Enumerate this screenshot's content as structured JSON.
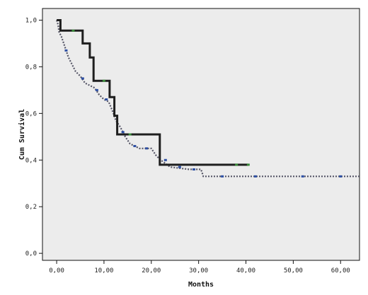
{
  "chart_data": {
    "type": "line",
    "title": "",
    "xlabel": "Months",
    "ylabel": "Cum Survival",
    "xlim": [
      -3,
      64
    ],
    "ylim": [
      -0.03,
      1.05
    ],
    "xticks": [
      0,
      10,
      20,
      30,
      40,
      50,
      60
    ],
    "xtick_labels": [
      "0,00",
      "10,00",
      "20,00",
      "30,00",
      "40,00",
      "50,00",
      "60,00"
    ],
    "yticks": [
      0,
      0.2,
      0.4,
      0.6,
      0.8,
      1.0
    ],
    "ytick_labels": [
      "0,0",
      "0,2",
      "0,4",
      "0,6",
      "0,8",
      "1,0"
    ],
    "grid": false,
    "legend": "none",
    "colors": {
      "plot_bg": "#ececec",
      "series_a": "#1e1e1e",
      "series_b": "#555566",
      "censor_a": "#3a8a3a",
      "censor_b": "#2d4fa3"
    },
    "series": [
      {
        "style": "solid-thick",
        "points": [
          [
            0,
            1.0
          ],
          [
            0.8,
            1.0
          ],
          [
            0.8,
            0.955
          ],
          [
            5.5,
            0.955
          ],
          [
            5.5,
            0.9
          ],
          [
            7.0,
            0.9
          ],
          [
            7.0,
            0.84
          ],
          [
            7.8,
            0.84
          ],
          [
            7.8,
            0.74
          ],
          [
            11.2,
            0.74
          ],
          [
            11.2,
            0.67
          ],
          [
            12.2,
            0.67
          ],
          [
            12.2,
            0.59
          ],
          [
            12.8,
            0.59
          ],
          [
            12.8,
            0.51
          ],
          [
            21.8,
            0.51
          ],
          [
            21.8,
            0.38
          ],
          [
            40.5,
            0.38
          ]
        ],
        "censored": [
          [
            3.5,
            0.955
          ],
          [
            10.0,
            0.74
          ],
          [
            15.5,
            0.51
          ],
          [
            38.0,
            0.38
          ],
          [
            40.5,
            0.38
          ]
        ]
      },
      {
        "style": "dotted",
        "points": [
          [
            0,
            1.0
          ],
          [
            0.3,
            0.98
          ],
          [
            0.5,
            0.95
          ],
          [
            1.0,
            0.93
          ],
          [
            1.5,
            0.9
          ],
          [
            2.0,
            0.87
          ],
          [
            2.5,
            0.84
          ],
          [
            3.0,
            0.82
          ],
          [
            3.5,
            0.8
          ],
          [
            4.0,
            0.78
          ],
          [
            5.0,
            0.76
          ],
          [
            6.0,
            0.73
          ],
          [
            7.0,
            0.72
          ],
          [
            8.0,
            0.71
          ],
          [
            9.0,
            0.68
          ],
          [
            10.0,
            0.66
          ],
          [
            11.0,
            0.65
          ],
          [
            12.0,
            0.6
          ],
          [
            12.5,
            0.57
          ],
          [
            13.5,
            0.54
          ],
          [
            14.5,
            0.5
          ],
          [
            15.5,
            0.47
          ],
          [
            17.5,
            0.45
          ],
          [
            20.0,
            0.45
          ],
          [
            21.0,
            0.42
          ],
          [
            22.0,
            0.4
          ],
          [
            24.0,
            0.37
          ],
          [
            28.0,
            0.36
          ],
          [
            30.5,
            0.36
          ],
          [
            31.0,
            0.33
          ],
          [
            64.0,
            0.33
          ]
        ],
        "censored": [
          [
            2.0,
            0.87
          ],
          [
            5.5,
            0.75
          ],
          [
            8.5,
            0.7
          ],
          [
            10.5,
            0.66
          ],
          [
            14.0,
            0.52
          ],
          [
            16.5,
            0.46
          ],
          [
            19.0,
            0.45
          ],
          [
            23.0,
            0.4
          ],
          [
            26.0,
            0.37
          ],
          [
            29.0,
            0.36
          ],
          [
            35.0,
            0.33
          ],
          [
            42.0,
            0.33
          ],
          [
            52.0,
            0.33
          ],
          [
            60.0,
            0.33
          ]
        ]
      }
    ]
  }
}
